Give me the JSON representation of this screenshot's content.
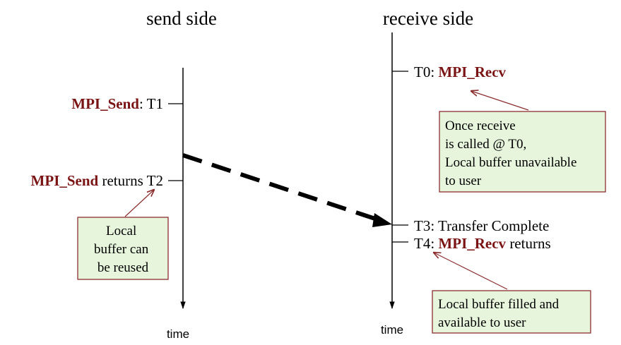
{
  "titles": {
    "send_side": "send side",
    "receive_side": "receive side"
  },
  "send_events": {
    "t1_fn": "MPI_Send",
    "t1_rest": ":  T1",
    "t2_fn": "MPI_Send",
    "t2_rest": " returns T2"
  },
  "receive_events": {
    "t0_prefix": "T0: ",
    "t0_fn": "MPI_Recv",
    "t3_text": "T3: Transfer Complete",
    "t4_prefix": "T4: ",
    "t4_fn": "MPI_Recv",
    "t4_rest": " returns"
  },
  "notes": {
    "send_note": [
      "Local",
      "buffer can",
      "be reused"
    ],
    "recv_call_note": [
      "Once receive",
      "is called @ T0,",
      "Local buffer unavailable",
      "to user"
    ],
    "recv_done_note": [
      "Local buffer filled and",
      "available to user"
    ]
  },
  "axis_labels": {
    "send_time": "time",
    "receive_time": "time"
  },
  "colors": {
    "function_name": "#7a1414",
    "note_fill": "#e6f5dc",
    "note_border": "#8b2f2f"
  }
}
